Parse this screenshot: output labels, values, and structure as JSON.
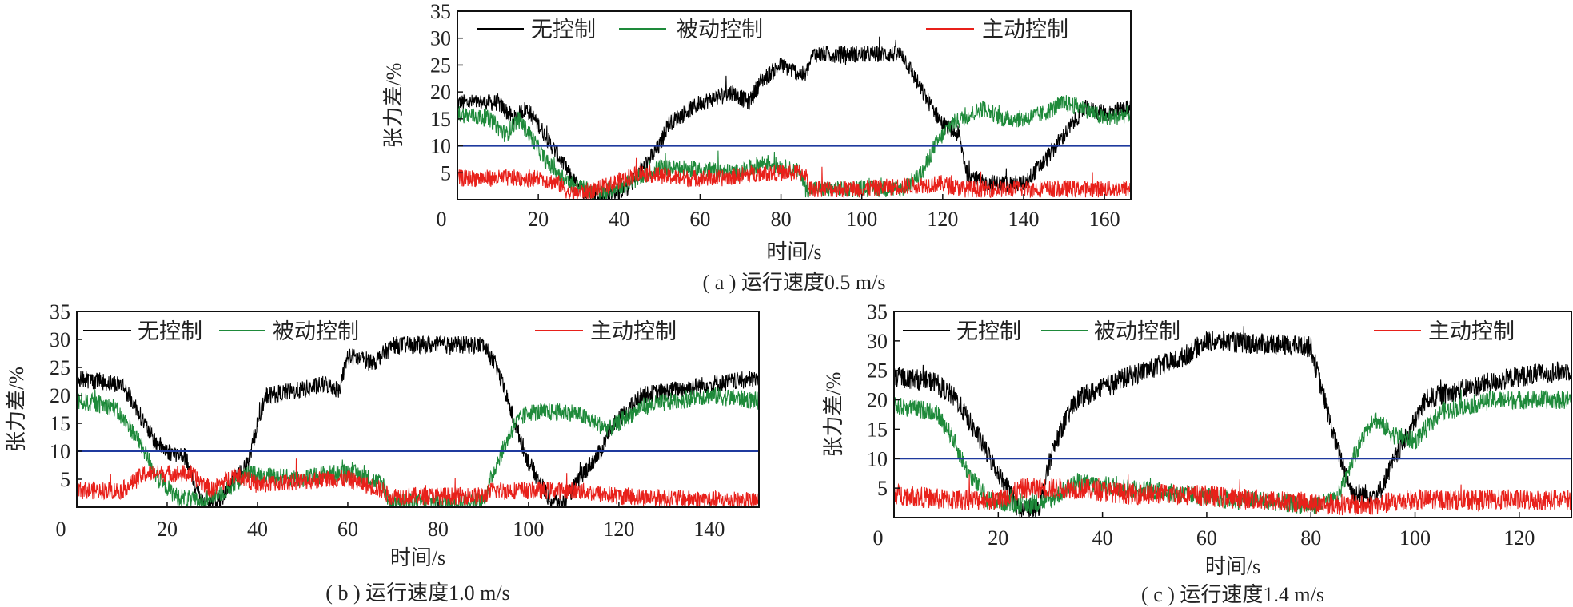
{
  "chart_data": [
    {
      "type": "line",
      "caption": "( a ) 运行速度0.5 m/s",
      "xlabel": "时间/s",
      "ylabel": "张力差/%",
      "xlim": [
        0,
        166.5
      ],
      "ylim": [
        0,
        35
      ],
      "xticks": [
        0,
        20,
        40,
        60,
        80,
        100,
        120,
        140,
        160
      ],
      "yticks": [
        5,
        10,
        15,
        20,
        25,
        30,
        35
      ],
      "grid": false,
      "threshold": {
        "value": 10,
        "color": "#1f3a9e"
      },
      "series": [
        {
          "name": "无控制",
          "color": "#000000",
          "noise": 1.6,
          "points": [
            [
              0,
              18
            ],
            [
              10,
              18
            ],
            [
              14,
              15
            ],
            [
              17,
              17
            ],
            [
              20,
              14
            ],
            [
              25,
              8
            ],
            [
              30,
              2
            ],
            [
              35,
              0.5
            ],
            [
              42,
              2
            ],
            [
              45,
              5
            ],
            [
              48,
              8
            ],
            [
              50,
              10
            ],
            [
              52,
              14
            ],
            [
              60,
              18
            ],
            [
              68,
              20
            ],
            [
              72,
              18
            ],
            [
              75,
              22
            ],
            [
              80,
              25
            ],
            [
              86,
              23
            ],
            [
              88,
              27
            ],
            [
              110,
              27
            ],
            [
              115,
              20
            ],
            [
              120,
              14
            ],
            [
              124,
              12
            ],
            [
              126,
              5
            ],
            [
              130,
              3
            ],
            [
              140,
              3
            ],
            [
              145,
              7
            ],
            [
              150,
              12
            ],
            [
              155,
              17
            ],
            [
              160,
              16
            ],
            [
              166.5,
              17
            ]
          ]
        },
        {
          "name": "被动控制",
          "color": "#1e8a3a",
          "noise": 1.6,
          "points": [
            [
              0,
              16
            ],
            [
              8,
              15
            ],
            [
              12,
              12
            ],
            [
              15,
              15
            ],
            [
              18,
              12
            ],
            [
              22,
              7
            ],
            [
              28,
              3
            ],
            [
              35,
              1
            ],
            [
              45,
              4
            ],
            [
              50,
              6
            ],
            [
              70,
              5
            ],
            [
              76,
              7
            ],
            [
              85,
              5
            ],
            [
              86,
              2
            ],
            [
              110,
              2
            ],
            [
              115,
              5
            ],
            [
              118,
              10
            ],
            [
              122,
              14
            ],
            [
              130,
              17
            ],
            [
              135,
              15
            ],
            [
              140,
              15
            ],
            [
              145,
              16
            ],
            [
              150,
              18
            ],
            [
              155,
              17
            ],
            [
              160,
              15
            ],
            [
              166.5,
              16
            ]
          ]
        },
        {
          "name": "主动控制",
          "color": "#e8201a",
          "noise": 1.6,
          "points": [
            [
              0,
              4
            ],
            [
              20,
              4
            ],
            [
              25,
              3
            ],
            [
              28,
              1
            ],
            [
              35,
              2
            ],
            [
              45,
              5
            ],
            [
              55,
              4
            ],
            [
              65,
              4
            ],
            [
              75,
              5
            ],
            [
              86,
              5
            ],
            [
              87,
              2
            ],
            [
              100,
              2
            ],
            [
              120,
              3
            ],
            [
              125,
              2
            ],
            [
              140,
              2
            ],
            [
              166.5,
              2
            ]
          ]
        }
      ]
    },
    {
      "type": "line",
      "caption": "( b ) 运行速度1.0 m/s",
      "xlabel": "时间/s",
      "ylabel": "张力差/%",
      "xlim": [
        0,
        151
      ],
      "ylim": [
        0,
        35
      ],
      "xticks": [
        0,
        20,
        40,
        60,
        80,
        100,
        120,
        140
      ],
      "yticks": [
        5,
        10,
        15,
        20,
        25,
        30,
        35
      ],
      "grid": false,
      "threshold": {
        "value": 10,
        "color": "#1f3a9e"
      },
      "series": [
        {
          "name": "无控制",
          "color": "#000000",
          "noise": 1.6,
          "points": [
            [
              0,
              23
            ],
            [
              10,
              22
            ],
            [
              13,
              18
            ],
            [
              17,
              12
            ],
            [
              20,
              10
            ],
            [
              24,
              9
            ],
            [
              26,
              4
            ],
            [
              28,
              1
            ],
            [
              32,
              1
            ],
            [
              34,
              4
            ],
            [
              38,
              8
            ],
            [
              40,
              15
            ],
            [
              42,
              20
            ],
            [
              50,
              21
            ],
            [
              55,
              22
            ],
            [
              58,
              21
            ],
            [
              60,
              27
            ],
            [
              66,
              26
            ],
            [
              70,
              29
            ],
            [
              90,
              29
            ],
            [
              93,
              25
            ],
            [
              97,
              15
            ],
            [
              100,
              8
            ],
            [
              105,
              1
            ],
            [
              108,
              1
            ],
            [
              112,
              6
            ],
            [
              116,
              10
            ],
            [
              118,
              14
            ],
            [
              125,
              20
            ],
            [
              140,
              22
            ],
            [
              151,
              23
            ]
          ]
        },
        {
          "name": "被动控制",
          "color": "#1e8a3a",
          "noise": 1.6,
          "points": [
            [
              0,
              19
            ],
            [
              8,
              18
            ],
            [
              12,
              14
            ],
            [
              15,
              10
            ],
            [
              18,
              5
            ],
            [
              22,
              2
            ],
            [
              27,
              1
            ],
            [
              33,
              3
            ],
            [
              38,
              6
            ],
            [
              50,
              5
            ],
            [
              55,
              6
            ],
            [
              62,
              6
            ],
            [
              68,
              4
            ],
            [
              69,
              1
            ],
            [
              90,
              1
            ],
            [
              93,
              8
            ],
            [
              97,
              15
            ],
            [
              100,
              17
            ],
            [
              110,
              17
            ],
            [
              115,
              15
            ],
            [
              118,
              14
            ],
            [
              125,
              18
            ],
            [
              140,
              20
            ],
            [
              151,
              19
            ]
          ]
        },
        {
          "name": "主动控制",
          "color": "#e8201a",
          "noise": 1.6,
          "points": [
            [
              0,
              3
            ],
            [
              10,
              3
            ],
            [
              15,
              6
            ],
            [
              25,
              6
            ],
            [
              30,
              3
            ],
            [
              35,
              6
            ],
            [
              40,
              4
            ],
            [
              55,
              5
            ],
            [
              60,
              5
            ],
            [
              68,
              3
            ],
            [
              69,
              2
            ],
            [
              90,
              2
            ],
            [
              92,
              3
            ],
            [
              100,
              3
            ],
            [
              110,
              3
            ],
            [
              120,
              2
            ],
            [
              151,
              1
            ]
          ]
        }
      ]
    },
    {
      "type": "line",
      "caption": "( c ) 运行速度1.4 m/s",
      "xlabel": "时间/s",
      "ylabel": "张力差/%",
      "xlim": [
        0,
        130
      ],
      "ylim": [
        0,
        35
      ],
      "xticks": [
        0,
        20,
        40,
        60,
        80,
        100,
        120
      ],
      "yticks": [
        5,
        10,
        15,
        20,
        25,
        30,
        35
      ],
      "grid": false,
      "threshold": {
        "value": 10,
        "color": "#1f3a9e"
      },
      "series": [
        {
          "name": "无控制",
          "color": "#000000",
          "noise": 1.8,
          "points": [
            [
              0,
              24
            ],
            [
              8,
              23
            ],
            [
              12,
              20
            ],
            [
              16,
              14
            ],
            [
              19,
              9
            ],
            [
              22,
              5
            ],
            [
              24,
              1
            ],
            [
              28,
              2
            ],
            [
              30,
              10
            ],
            [
              32,
              15
            ],
            [
              35,
              20
            ],
            [
              45,
              24
            ],
            [
              55,
              27
            ],
            [
              60,
              30
            ],
            [
              80,
              29
            ],
            [
              82,
              22
            ],
            [
              85,
              12
            ],
            [
              88,
              4
            ],
            [
              93,
              4
            ],
            [
              95,
              8
            ],
            [
              98,
              13
            ],
            [
              102,
              20
            ],
            [
              110,
              22
            ],
            [
              120,
              24
            ],
            [
              130,
              25
            ]
          ]
        },
        {
          "name": "被动控制",
          "color": "#1e8a3a",
          "noise": 1.6,
          "points": [
            [
              0,
              19
            ],
            [
              8,
              18
            ],
            [
              11,
              14
            ],
            [
              14,
              8
            ],
            [
              18,
              3
            ],
            [
              25,
              2
            ],
            [
              30,
              3
            ],
            [
              35,
              6
            ],
            [
              45,
              5
            ],
            [
              55,
              4
            ],
            [
              65,
              3
            ],
            [
              70,
              3
            ],
            [
              80,
              2
            ],
            [
              85,
              3
            ],
            [
              88,
              10
            ],
            [
              92,
              17
            ],
            [
              96,
              14
            ],
            [
              100,
              13
            ],
            [
              105,
              18
            ],
            [
              115,
              20
            ],
            [
              130,
              20
            ]
          ]
        },
        {
          "name": "主动控制",
          "color": "#e8201a",
          "noise": 1.8,
          "points": [
            [
              0,
              4
            ],
            [
              10,
              3
            ],
            [
              20,
              3
            ],
            [
              25,
              5
            ],
            [
              35,
              5
            ],
            [
              45,
              4
            ],
            [
              55,
              4
            ],
            [
              70,
              3
            ],
            [
              90,
              2
            ],
            [
              100,
              3
            ],
            [
              130,
              3
            ]
          ]
        }
      ]
    }
  ]
}
